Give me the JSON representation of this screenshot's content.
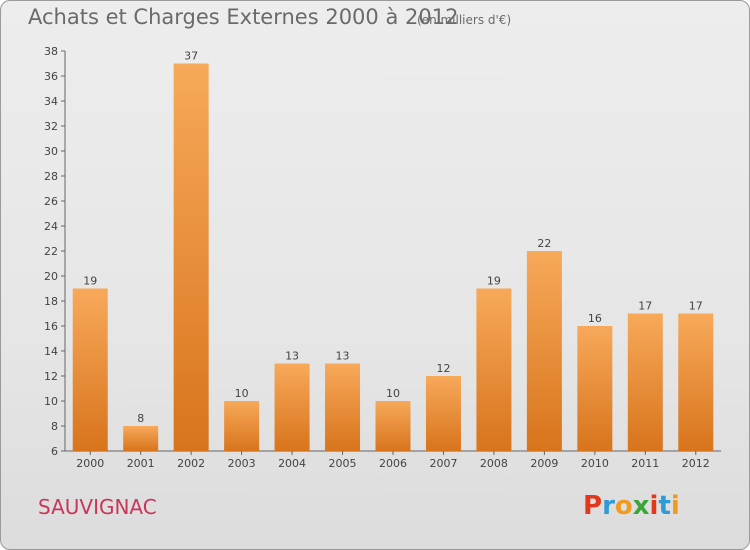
{
  "header": {
    "title": "Achats et Charges Externes 2000 à 2012",
    "unit": "(en milliers d'€)"
  },
  "footer": {
    "commune": "SAUVIGNAC",
    "brand": "Proxiti"
  },
  "colors": {
    "bar_top": "#f7a95a",
    "bar_bottom": "#d8741c",
    "commune": "#c8365a",
    "brand_letters": [
      "#e2381c",
      "#2f9bd6",
      "#f29a1f",
      "#3aa63a",
      "#e2381c",
      "#2f9bd6",
      "#f29a1f"
    ]
  },
  "chart_data": {
    "type": "bar",
    "title": "Achats et Charges Externes 2000 à 2012",
    "subtitle": "(en milliers d'€)",
    "categories": [
      "2000",
      "2001",
      "2002",
      "2003",
      "2004",
      "2005",
      "2006",
      "2007",
      "2008",
      "2009",
      "2010",
      "2011",
      "2012"
    ],
    "values": [
      19,
      8,
      37,
      10,
      13,
      13,
      10,
      12,
      19,
      22,
      16,
      17,
      17
    ],
    "ylim": [
      6,
      38
    ],
    "yticks": [
      6,
      8,
      10,
      12,
      14,
      16,
      18,
      20,
      22,
      24,
      26,
      28,
      30,
      32,
      34,
      36,
      38
    ],
    "grid": false,
    "legend": "none"
  }
}
